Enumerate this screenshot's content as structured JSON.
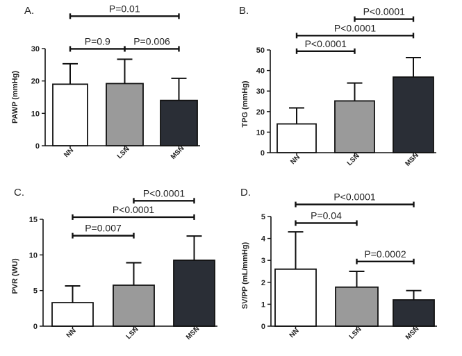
{
  "colors": {
    "NN": "#ffffff",
    "LSN": "#9a9a9a",
    "MSN": "#2a2e36",
    "ink": "#111111"
  },
  "chart_data": [
    {
      "type": "bar",
      "panel": "A.",
      "ylabel": "PAWP (mmHg)",
      "ylim": [
        0,
        30
      ],
      "yticks": [
        0,
        10,
        20,
        30
      ],
      "categories": [
        "NN",
        "LSN",
        "MSN"
      ],
      "values": [
        19,
        19.2,
        14
      ],
      "errors": [
        6.3,
        7.5,
        6.8
      ],
      "comparisons": [
        {
          "from": 0,
          "to": 2,
          "label": "P=0.01",
          "level": 40
        },
        {
          "from": 0,
          "to": 1,
          "label": "P=0.9",
          "level": 29.9
        },
        {
          "from": 1,
          "to": 2,
          "label": "P=0.006",
          "level": 29.9
        }
      ]
    },
    {
      "type": "bar",
      "panel": "B.",
      "ylabel": "TPG (mmHg)",
      "ylim": [
        0,
        50
      ],
      "yticks": [
        0,
        10,
        20,
        30,
        40,
        50
      ],
      "categories": [
        "NN",
        "LSN",
        "MSN"
      ],
      "values": [
        14,
        25.2,
        36.8
      ],
      "errors": [
        7.8,
        8.7,
        9.5
      ],
      "comparisons": [
        {
          "from": 1,
          "to": 2,
          "label": "P<0.0001",
          "level": 65
        },
        {
          "from": 0,
          "to": 2,
          "label": "P<0.0001",
          "level": 57
        },
        {
          "from": 0,
          "to": 1,
          "label": "P<0.0001",
          "level": 49.4
        }
      ]
    },
    {
      "type": "bar",
      "panel": "C.",
      "ylabel": "PVR (WU)",
      "ylim": [
        0,
        15
      ],
      "yticks": [
        0,
        5,
        10,
        15
      ],
      "categories": [
        "NN",
        "LSN",
        "MSN"
      ],
      "values": [
        3.3,
        5.75,
        9.25
      ],
      "errors": [
        2.35,
        3.15,
        3.4
      ],
      "comparisons": [
        {
          "from": 1,
          "to": 2,
          "label": "P<0.0001",
          "level": 17.6
        },
        {
          "from": 0,
          "to": 2,
          "label": "P<0.0001",
          "level": 15.3
        },
        {
          "from": 0,
          "to": 1,
          "label": "P=0.007",
          "level": 12.7
        }
      ]
    },
    {
      "type": "bar",
      "panel": "D.",
      "ylabel": "SV/PP (mL/mmHg)",
      "ylim": [
        0,
        5
      ],
      "yticks": [
        0,
        1,
        2,
        3,
        4,
        5
      ],
      "categories": [
        "NN",
        "LSN",
        "MSN"
      ],
      "values": [
        2.6,
        1.78,
        1.2
      ],
      "errors": [
        1.7,
        0.72,
        0.42
      ],
      "comparisons": [
        {
          "from": 0,
          "to": 2,
          "label": "P<0.0001",
          "level": 5.55
        },
        {
          "from": 0,
          "to": 1,
          "label": "P=0.04",
          "level": 4.7
        },
        {
          "from": 1,
          "to": 2,
          "label": "P=0.0002",
          "level": 2.95
        }
      ]
    }
  ]
}
